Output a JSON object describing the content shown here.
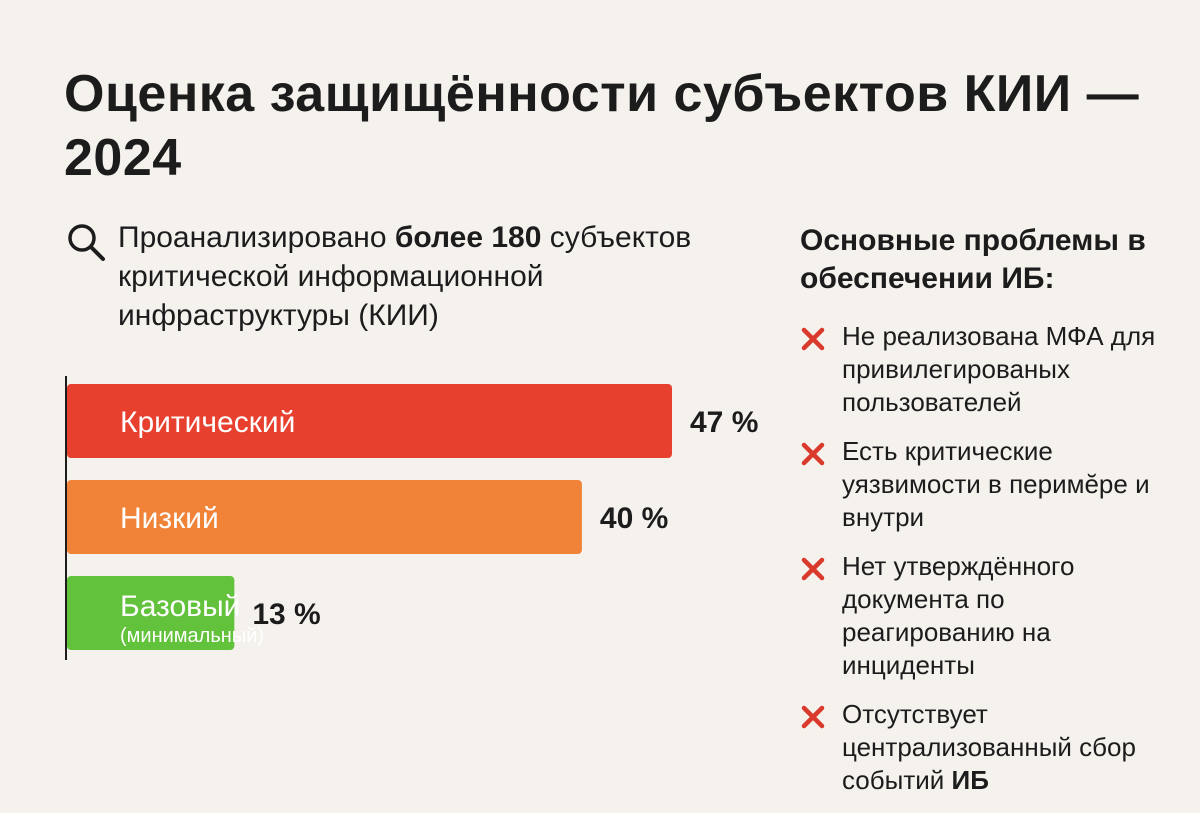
{
  "title": "Оценка защищённости субъектов КИИ —2024",
  "intro": {
    "icon": "search-icon",
    "text_before": "Проанализировано ",
    "text_bold": "более 180",
    "text_after": " субъектов критической информационной инфраструктуры (КИИ)"
  },
  "chart_data": {
    "type": "bar",
    "orientation": "horizontal",
    "categories": [
      "Критический",
      "Низкий",
      "Базовый"
    ],
    "sublabels": [
      "",
      "",
      "(минимальный)"
    ],
    "values": [
      47,
      40,
      13
    ],
    "value_labels": [
      "47 %",
      "40 %",
      "13 %"
    ],
    "colors": [
      "#e8402f",
      "#f08338",
      "#62c23c"
    ],
    "unit": "%",
    "title": "",
    "xlabel": "",
    "ylabel": "",
    "xlim": [
      0,
      47
    ]
  },
  "problems": {
    "title": "Основные проблемы в обеспечении ИБ:",
    "icon": "cross-icon",
    "icon_color": "#d93a2c",
    "items": [
      {
        "text": "Не реализована МФА для привилегированых пользователей",
        "bold": ""
      },
      {
        "text": "Есть критические уязвимости в перимӗре и внутри",
        "bold": ""
      },
      {
        "text": "Нет утверждённого документа по реагированию на инциденты",
        "bold": ""
      },
      {
        "text": "Отсутствует централизованный сбор событий ",
        "bold": "ИБ"
      }
    ]
  }
}
